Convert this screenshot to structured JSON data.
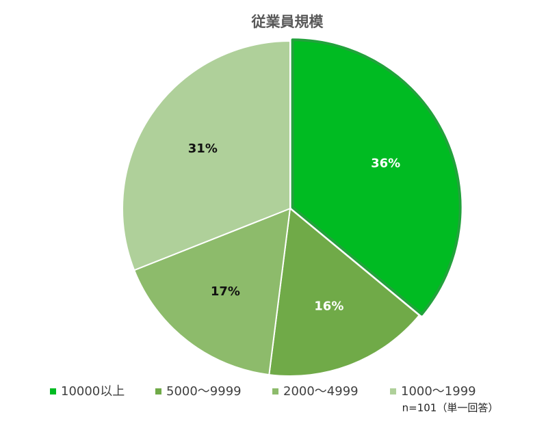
{
  "chart_data": {
    "type": "pie",
    "title": "従業員規模",
    "categories": [
      "10000以上",
      "5000～9999",
      "2000～4999",
      "1000～1999"
    ],
    "values": [
      36,
      16,
      17,
      31
    ],
    "value_labels": [
      "36%",
      "16%",
      "17%",
      "31%"
    ],
    "colors": [
      "#00bb22",
      "#70aa48",
      "#8dbb6b",
      "#afd09a"
    ],
    "legend": "bottom",
    "annotation": "n=101（単一回答）"
  }
}
